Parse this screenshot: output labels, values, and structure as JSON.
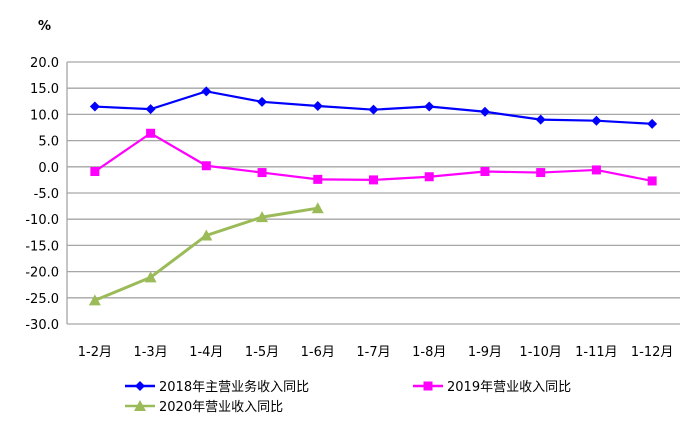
{
  "chart_data": {
    "type": "line",
    "ylabel": "%",
    "ylim": [
      -30,
      20
    ],
    "ytick_step": 5,
    "yticks": [
      "20.0",
      "15.0",
      "10.0",
      "5.0",
      "0.0",
      "-5.0",
      "-10.0",
      "-15.0",
      "-20.0",
      "-25.0",
      "-30.0"
    ],
    "grid": true,
    "legend_position": "bottom",
    "categories": [
      "1-2月",
      "1-3月",
      "1-4月",
      "1-5月",
      "1-6月",
      "1-7月",
      "1-8月",
      "1-9月",
      "1-10月",
      "1-11月",
      "1-12月"
    ],
    "series": [
      {
        "name": "2018年主营业务收入同比",
        "color": "#0000FF",
        "marker": "diamond",
        "values": [
          11.5,
          11.0,
          14.4,
          12.4,
          11.6,
          10.9,
          11.5,
          10.5,
          9.0,
          8.8,
          8.2
        ]
      },
      {
        "name": "2019年营业收入同比",
        "color": "#FF00FF",
        "marker": "square",
        "values": [
          -0.9,
          6.4,
          0.2,
          -1.1,
          -2.4,
          -2.5,
          -1.9,
          -0.9,
          -1.1,
          -0.6,
          -2.7
        ]
      },
      {
        "name": "2020年营业收入同比",
        "color": "#9BBB59",
        "marker": "triangle",
        "values": [
          -25.5,
          -21.1,
          -13.1,
          -9.6,
          -7.9,
          null,
          null,
          null,
          null,
          null,
          null
        ]
      }
    ]
  }
}
